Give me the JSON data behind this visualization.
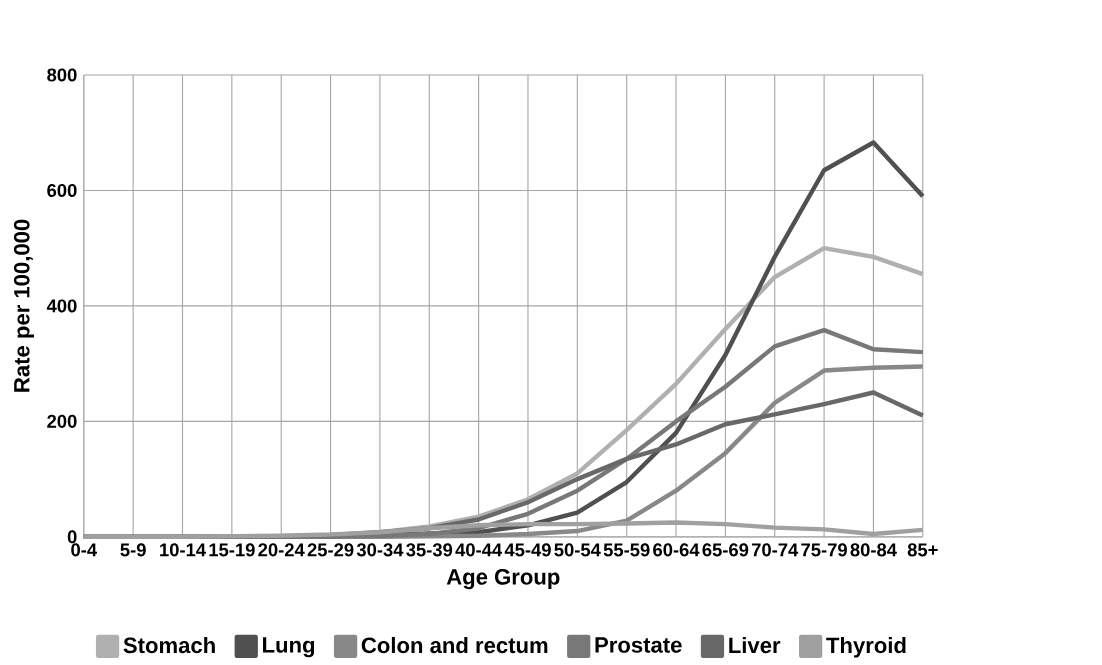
{
  "chart_data": {
    "type": "line",
    "xlabel": "Age Group",
    "ylabel": "Rate per 100,000",
    "categories": [
      "0-4",
      "5-9",
      "10-14",
      "15-19",
      "20-24",
      "25-29",
      "30-34",
      "35-39",
      "40-44",
      "45-49",
      "50-54",
      "55-59",
      "60-64",
      "65-69",
      "70-74",
      "75-79",
      "80-84",
      "85+"
    ],
    "series": [
      {
        "name": "Stomach",
        "color": "#b0b0b0",
        "values": [
          0,
          0,
          0,
          0,
          1,
          3,
          8,
          18,
          35,
          65,
          110,
          185,
          265,
          360,
          450,
          500,
          485,
          455
        ]
      },
      {
        "name": "Lung",
        "color": "#505050",
        "values": [
          0,
          0,
          0,
          0,
          0,
          1,
          3,
          6,
          8,
          20,
          42,
          95,
          180,
          315,
          485,
          635,
          683,
          590
        ]
      },
      {
        "name": "Colon and rectum",
        "color": "#888888",
        "values": [
          0,
          0,
          0,
          0,
          0,
          0,
          0,
          1,
          2,
          5,
          10,
          28,
          80,
          145,
          232,
          288,
          293,
          295
        ]
      },
      {
        "name": "Prostate",
        "color": "#787878",
        "values": [
          0,
          0,
          0,
          0,
          0,
          0,
          2,
          5,
          15,
          40,
          80,
          135,
          200,
          260,
          330,
          358,
          325,
          320
        ]
      },
      {
        "name": "Liver",
        "color": "#686868",
        "values": [
          0,
          0,
          0,
          0,
          1,
          3,
          8,
          15,
          30,
          60,
          100,
          135,
          160,
          195,
          212,
          230,
          250,
          210
        ]
      },
      {
        "name": "Thyroid",
        "color": "#a0a0a0",
        "values": [
          0,
          0,
          0,
          1,
          2,
          4,
          8,
          15,
          20,
          22,
          22,
          23,
          25,
          22,
          16,
          13,
          5,
          12
        ]
      }
    ],
    "ylim": [
      0,
      800
    ],
    "yticks": [
      0,
      200,
      400,
      600,
      800
    ],
    "grid": true,
    "legend": "bottom",
    "marker": "none"
  }
}
